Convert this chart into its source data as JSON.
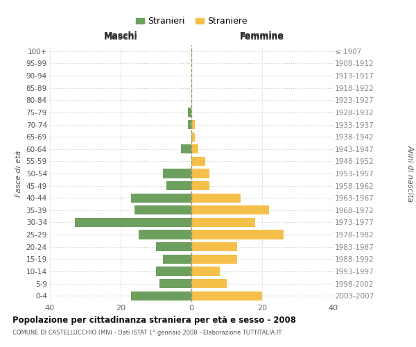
{
  "age_groups": [
    "0-4",
    "5-9",
    "10-14",
    "15-19",
    "20-24",
    "25-29",
    "30-34",
    "35-39",
    "40-44",
    "45-49",
    "50-54",
    "55-59",
    "60-64",
    "65-69",
    "70-74",
    "75-79",
    "80-84",
    "85-89",
    "90-94",
    "95-99",
    "100+"
  ],
  "birth_years": [
    "2003-2007",
    "1998-2002",
    "1993-1997",
    "1988-1992",
    "1983-1987",
    "1978-1982",
    "1973-1977",
    "1968-1972",
    "1963-1967",
    "1958-1962",
    "1953-1957",
    "1948-1952",
    "1943-1947",
    "1938-1942",
    "1933-1937",
    "1928-1932",
    "1923-1927",
    "1918-1922",
    "1913-1917",
    "1908-1912",
    "≤ 1907"
  ],
  "maschi": [
    17,
    9,
    10,
    8,
    10,
    15,
    33,
    16,
    17,
    7,
    8,
    0,
    3,
    0,
    1,
    1,
    0,
    0,
    0,
    0,
    0
  ],
  "femmine": [
    20,
    10,
    8,
    13,
    13,
    26,
    18,
    22,
    14,
    5,
    5,
    4,
    2,
    1,
    1,
    0,
    0,
    0,
    0,
    0,
    0
  ],
  "color_maschi": "#6d9f5e",
  "color_femmine": "#f5c04a",
  "title": "Popolazione per cittadinanza straniera per età e sesso - 2008",
  "subtitle": "COMUNE DI CASTELLUCCHIO (MN) - Dati ISTAT 1° gennaio 2008 - Elaborazione TUTTITALIA.IT",
  "ylabel_left": "Fasce di età",
  "ylabel_right": "Anni di nascita",
  "header_maschi": "Maschi",
  "header_femmine": "Femmine",
  "legend_maschi": "Stranieri",
  "legend_femmine": "Straniere",
  "xlim": 40,
  "background_color": "#ffffff",
  "grid_color": "#cccccc",
  "center_line_color": "#999966",
  "bar_height": 0.75
}
